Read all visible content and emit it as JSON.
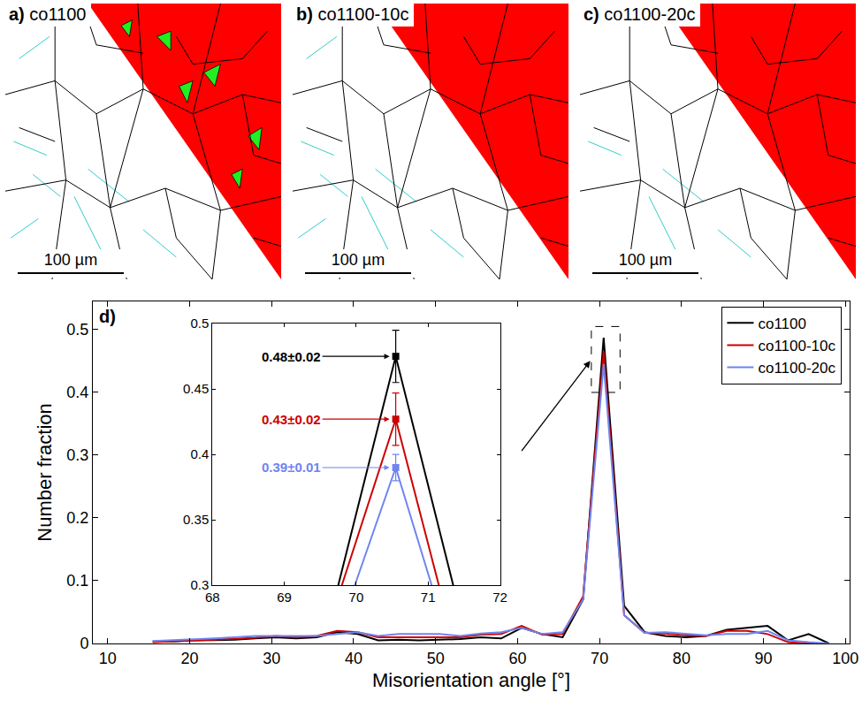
{
  "maps": [
    {
      "label": "a)",
      "name": "co1100",
      "scale_bar": "100 µm"
    },
    {
      "label": "b)",
      "name": "co1100-10c",
      "scale_bar": "100 µm"
    },
    {
      "label": "c)",
      "name": "co1100-20c",
      "scale_bar": "100 µm"
    }
  ],
  "chart_data": {
    "type": "line",
    "panel_label": "d)",
    "x_label": "Misorientation angle [°]",
    "y_label": "Number fraction",
    "xlim": [
      8.2,
      100.5
    ],
    "ylim": [
      0,
      0.545
    ],
    "xticks": [
      10,
      20,
      30,
      40,
      50,
      60,
      70,
      80,
      90,
      100
    ],
    "yticks": [
      0,
      0.1,
      0.2,
      0.3,
      0.4,
      0.5
    ],
    "legend": "top-right",
    "grid": false,
    "x": [
      15.5,
      18,
      20.5,
      23,
      25.5,
      28,
      30.5,
      33,
      35.5,
      38,
      40.5,
      43,
      45.5,
      48,
      50.5,
      53,
      55.5,
      58,
      60.5,
      63,
      65.5,
      68,
      70.5,
      73,
      75.5,
      78,
      80.5,
      83,
      85.5,
      88,
      90.5,
      93,
      95.5,
      98
    ],
    "series": [
      {
        "name": "co1100",
        "color": "#000000",
        "values": [
          0.003,
          0.003,
          0.005,
          0.005,
          0.006,
          0.008,
          0.01,
          0.008,
          0.01,
          0.018,
          0.015,
          0.005,
          0.006,
          0.005,
          0.006,
          0.007,
          0.01,
          0.008,
          0.025,
          0.015,
          0.01,
          0.07,
          0.487,
          0.06,
          0.018,
          0.012,
          0.01,
          0.012,
          0.022,
          0.025,
          0.028,
          0.005,
          0.015,
          0
        ]
      },
      {
        "name": "co1100-10c",
        "color": "#cc0000",
        "values": [
          0.002,
          0.004,
          0.005,
          0.006,
          0.007,
          0.009,
          0.012,
          0.01,
          0.012,
          0.02,
          0.018,
          0.01,
          0.01,
          0.01,
          0.01,
          0.01,
          0.014,
          0.015,
          0.028,
          0.014,
          0.015,
          0.075,
          0.465,
          0.045,
          0.017,
          0.016,
          0.013,
          0.012,
          0.02,
          0.02,
          0.015,
          0.002,
          0,
          0
        ]
      },
      {
        "name": "co1100-20c",
        "color": "#6f84f0",
        "values": [
          0.004,
          0.005,
          0.006,
          0.008,
          0.01,
          0.012,
          0.012,
          0.012,
          0.012,
          0.015,
          0.018,
          0.012,
          0.015,
          0.015,
          0.015,
          0.012,
          0.016,
          0.018,
          0.025,
          0.015,
          0.018,
          0.07,
          0.445,
          0.045,
          0.017,
          0.018,
          0.015,
          0.013,
          0.015,
          0.015,
          0.02,
          0.005,
          0.002,
          0
        ]
      }
    ],
    "zoom_box": {
      "x": [
        69,
        72.5
      ],
      "y": [
        0.4,
        0.505
      ]
    },
    "inset": {
      "xlim": [
        68,
        72
      ],
      "ylim": [
        0.3,
        0.5
      ],
      "xticks": [
        68,
        69,
        70,
        71,
        72
      ],
      "yticks": [
        0.3,
        0.35,
        0.4,
        0.45,
        0.5
      ],
      "series": [
        {
          "name": "co1100",
          "color": "#000000",
          "x": [
            69.75,
            70.55,
            71.35
          ],
          "values": [
            0.3,
            0.475,
            0.3
          ],
          "peak": {
            "x": 70.55,
            "value": 0.475,
            "error": 0.02,
            "label": "0.48±0.02"
          }
        },
        {
          "name": "co1100-10c",
          "color": "#cc0000",
          "x": [
            69.8,
            70.55,
            71.15
          ],
          "values": [
            0.3,
            0.427,
            0.3
          ],
          "peak": {
            "x": 70.55,
            "value": 0.427,
            "error": 0.02,
            "label": "0.43±0.02"
          }
        },
        {
          "name": "co1100-20c",
          "color": "#6f84f0",
          "x": [
            69.98,
            70.55,
            71.05
          ],
          "values": [
            0.3,
            0.39,
            0.3
          ],
          "peak": {
            "x": 70.55,
            "value": 0.39,
            "error": 0.01,
            "label": "0.39±0.01"
          }
        }
      ]
    }
  }
}
